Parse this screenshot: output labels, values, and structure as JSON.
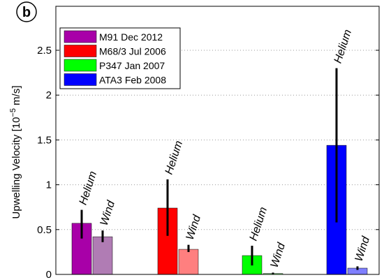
{
  "panel_label": "b",
  "chart_data": {
    "type": "bar",
    "ylabel": "Upwelling Velocity [10",
    "ylabel_exp": "−5",
    "ylabel_unit": " m/s]",
    "ylim": [
      0,
      2.5
    ],
    "yticks": [
      {
        "value": 0,
        "label": "0"
      },
      {
        "value": 0.5,
        "label": "0.5"
      },
      {
        "value": 1,
        "label": "1"
      },
      {
        "value": 1.5,
        "label": "1.5"
      },
      {
        "value": 2,
        "label": "2"
      },
      {
        "value": 2.5,
        "label": "2.5"
      }
    ],
    "grid": "horizontal dotted",
    "legend_position": "top-left",
    "series": [
      {
        "name": "M91 Dec 2012",
        "color": "#A800A8",
        "helium": {
          "label": "Helium",
          "value": 0.57,
          "err_low": 0.4,
          "err_high": 0.72,
          "color": "#A800A8"
        },
        "wind": {
          "label": "Wind",
          "value": 0.42,
          "err_low": 0.36,
          "err_high": 0.49,
          "color": "#B07CB4"
        }
      },
      {
        "name": "M68/3 Jul 2006",
        "color": "#FF0000",
        "helium": {
          "label": "Helium",
          "value": 0.74,
          "err_low": 0.43,
          "err_high": 1.06,
          "color": "#FF0000"
        },
        "wind": {
          "label": "Wind",
          "value": 0.28,
          "err_low": 0.25,
          "err_high": 0.33,
          "color": "#FF7F7F"
        }
      },
      {
        "name": "P347 Jan 2007",
        "color": "#00FF00",
        "helium": {
          "label": "Helium",
          "value": 0.21,
          "err_low": 0.1,
          "err_high": 0.32,
          "color": "#00FF00"
        },
        "wind": {
          "label": "Wind",
          "value": 0.01,
          "err_low": 0.005,
          "err_high": 0.02,
          "color": "#7FFF7F"
        }
      },
      {
        "name": "ATA3 Feb 2008",
        "color": "#0000FF",
        "helium": {
          "label": "Helium",
          "value": 1.44,
          "err_low": 0.58,
          "err_high": 2.3,
          "color": "#0000FF"
        },
        "wind": {
          "label": "Wind",
          "value": 0.07,
          "err_low": 0.05,
          "err_high": 0.09,
          "color": "#7F7FFF"
        }
      }
    ]
  }
}
